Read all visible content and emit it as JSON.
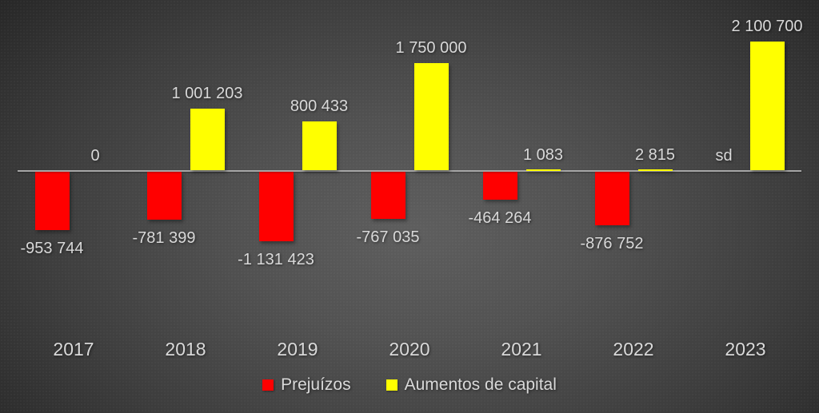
{
  "chart_data": {
    "type": "bar",
    "title": "",
    "categories": [
      "2017",
      "2018",
      "2019",
      "2020",
      "2021",
      "2022",
      "2023"
    ],
    "series": [
      {
        "name": "Prejuízos",
        "color": "#ff0000",
        "values": [
          -953744,
          -781399,
          -1131423,
          -767035,
          -464264,
          -876752,
          null
        ],
        "data_labels": [
          "-953 744",
          "-781 399",
          "-1 131 423",
          "-767 035",
          "-464 264",
          "-876 752",
          "sd"
        ]
      },
      {
        "name": "Aumentos de capital",
        "color": "#ffff00",
        "values": [
          0,
          1001203,
          800433,
          1750000,
          1083,
          2815,
          2100700
        ],
        "data_labels": [
          "0",
          "1 001 203",
          "800 433",
          "1 750 000",
          "1 083",
          "2 815",
          "2 100 700"
        ]
      }
    ],
    "ylim": [
      -1200000,
      2500000
    ],
    "grid": false,
    "legend_position": "bottom",
    "axis_line_color": "#a6a6a6",
    "no_data_label": "sd"
  },
  "legend": {
    "items": [
      {
        "label": "Prejuízos",
        "color": "#ff0000"
      },
      {
        "label": "Aumentos de capital",
        "color": "#ffff00"
      }
    ]
  },
  "styles": {
    "text_color": "#d9d9d9",
    "background_center": "#5e5e5e",
    "background_edge": "#232323"
  }
}
